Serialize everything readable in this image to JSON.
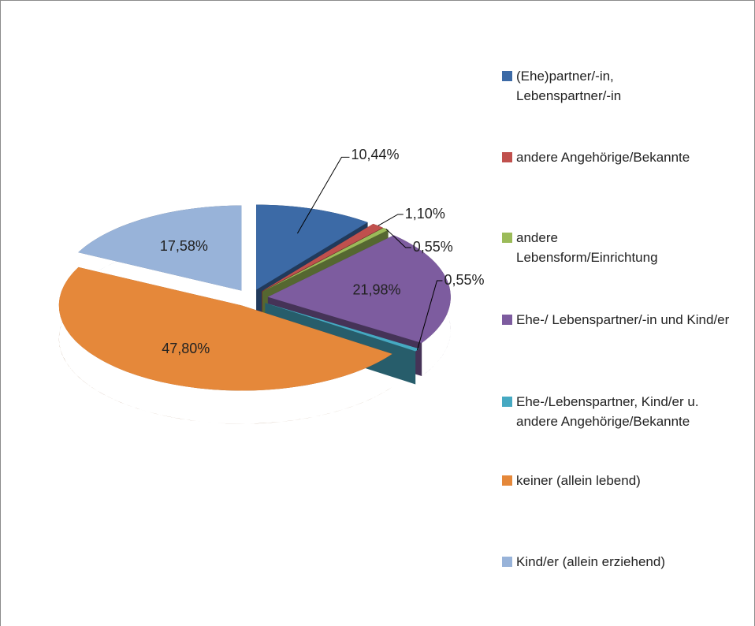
{
  "chart_data": {
    "type": "pie",
    "categories": [
      "(Ehe)partner/-in, Lebenspartner/-in",
      "andere Angehörige/Bekannte",
      "andere Lebensform/Einrichtung",
      "Ehe-/ Lebenspartner/-in und Kind/er",
      "Ehe-/Lebenspartner, Kind/er u. andere Angehörige/Bekannte",
      "keiner (allein lebend)",
      "Kind/er (allein erziehend)"
    ],
    "values": [
      10.44,
      1.1,
      0.55,
      21.98,
      0.55,
      47.8,
      17.58
    ],
    "value_labels": [
      "10,44%",
      "1,10%",
      "0,55%",
      "21,98%",
      "0,55%",
      "47,80%",
      "17,58%"
    ],
    "colors": [
      "#3c6aa6",
      "#c0504d",
      "#9bbb59",
      "#7d5c9f",
      "#46a9c2",
      "#e5883a",
      "#98b3d9"
    ],
    "legend": "right"
  }
}
